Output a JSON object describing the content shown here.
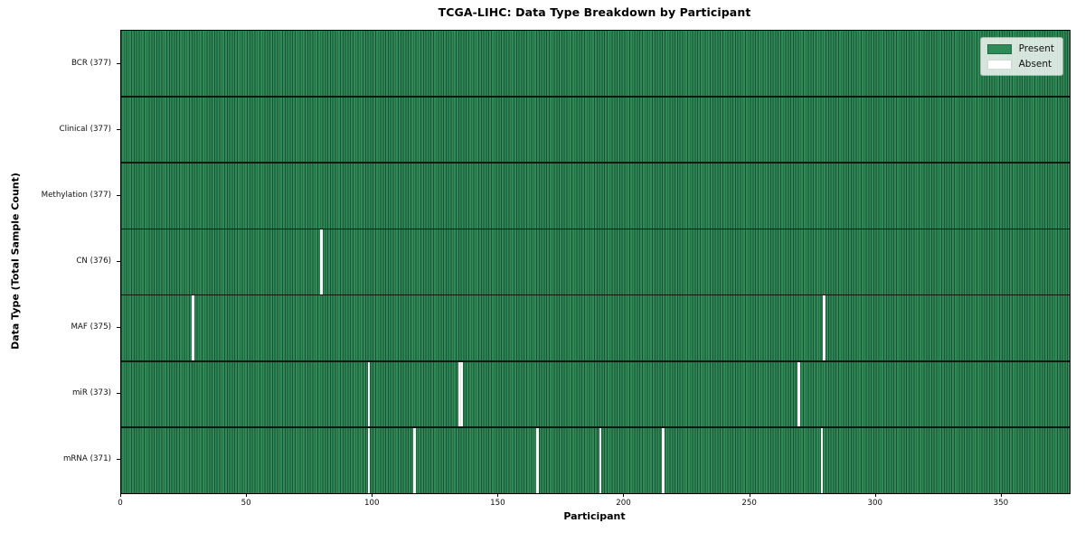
{
  "figure": {
    "title": "TCGA-LIHC: Data Type Breakdown by Participant",
    "xlabel": "Participant",
    "ylabel": "Data Type (Total Sample Count)"
  },
  "legend": {
    "items": [
      {
        "label": "Present",
        "color": "#2e8b57",
        "border": "#1f6b42"
      },
      {
        "label": "Absent",
        "color": "#ffffff",
        "border": "#d4dad4"
      }
    ],
    "position": "upper right"
  },
  "chart_data": {
    "type": "heatmap",
    "title": "TCGA-LIHC: Data Type Breakdown by Participant",
    "xlabel": "Participant",
    "ylabel": "Data Type (Total Sample Count)",
    "n_participants": 377,
    "xlim": [
      0,
      377
    ],
    "x_ticks": [
      0,
      50,
      100,
      150,
      200,
      250,
      300,
      350
    ],
    "grid": false,
    "legend": [
      "Present",
      "Absent"
    ],
    "legend_position": "upper right",
    "colors": {
      "present": "#2e8b57",
      "cell_edge": "#1c5233",
      "absent": "#fbfbfb",
      "row_separator": "#0b1a10"
    },
    "rows": [
      {
        "label": "BCR (377)",
        "name": "BCR",
        "present_count": 377,
        "absent_participants": []
      },
      {
        "label": "Clinical (377)",
        "name": "Clinical",
        "present_count": 377,
        "absent_participants": []
      },
      {
        "label": "Methylation (377)",
        "name": "Methylation",
        "present_count": 377,
        "absent_participants": []
      },
      {
        "label": "CN (376)",
        "name": "CN",
        "present_count": 376,
        "absent_participants": [
          79
        ]
      },
      {
        "label": "MAF (375)",
        "name": "MAF",
        "present_count": 375,
        "absent_participants": [
          28,
          279
        ]
      },
      {
        "label": "miR (373)",
        "name": "miR",
        "present_count": 373,
        "absent_participants": [
          98,
          134,
          135,
          269
        ]
      },
      {
        "label": "mRNA (371)",
        "name": "mRNA",
        "present_count": 371,
        "absent_participants": [
          98,
          116,
          165,
          190,
          215,
          278
        ]
      }
    ]
  }
}
